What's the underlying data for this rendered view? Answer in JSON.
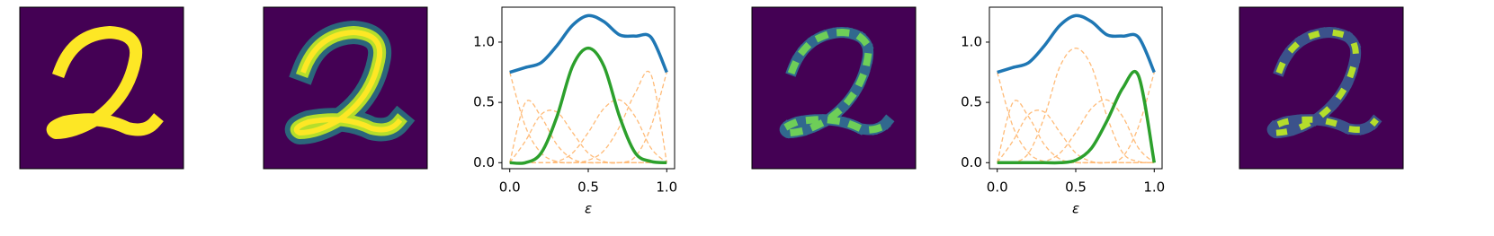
{
  "chart_data": [
    {
      "type": "line",
      "xlabel": "ε",
      "x": [
        0,
        0.1,
        0.2,
        0.3,
        0.4,
        0.5,
        0.6,
        0.7,
        0.8,
        0.9,
        1.0
      ],
      "xlim": [
        -0.05,
        1.05
      ],
      "ylim": [
        -0.05,
        1.29
      ],
      "xticks": [
        {
          "value": 0,
          "label": "0.0"
        },
        {
          "value": 0.5,
          "label": "0.5"
        },
        {
          "value": 1,
          "label": "1.0"
        }
      ],
      "yticks": [
        {
          "value": 0,
          "label": "0.0"
        },
        {
          "value": 0.5,
          "label": "0.5"
        },
        {
          "value": 1,
          "label": "1.0"
        }
      ],
      "series": [
        {
          "color": "#ffbb78",
          "linestyle": "dashed",
          "values": [
            0.75,
            0.3,
            0.08,
            0.01,
            0,
            0,
            0,
            0,
            0,
            0,
            0
          ]
        },
        {
          "color": "#ffbb78",
          "linestyle": "dashed",
          "values": [
            0,
            0.5,
            0.38,
            0.15,
            0.03,
            0,
            0,
            0,
            0,
            0,
            0
          ]
        },
        {
          "color": "#ffbb78",
          "linestyle": "dashed",
          "values": [
            0,
            0.18,
            0.4,
            0.42,
            0.25,
            0.08,
            0.01,
            0,
            0,
            0,
            0
          ]
        },
        {
          "color": "#ffbb78",
          "linestyle": "dashed",
          "values": [
            0,
            0,
            0,
            0.01,
            0.08,
            0.25,
            0.45,
            0.52,
            0.38,
            0.12,
            0
          ]
        },
        {
          "color": "#ffbb78",
          "linestyle": "dashed",
          "values": [
            0,
            0,
            0,
            0,
            0,
            0.02,
            0.1,
            0.3,
            0.58,
            0.73,
            0
          ]
        },
        {
          "color": "#ffbb78",
          "linestyle": "dashed",
          "values": [
            0,
            0,
            0,
            0,
            0,
            0,
            0,
            0,
            0.05,
            0.3,
            0.75
          ]
        },
        {
          "color": "#2ca02c",
          "linestyle": "solid",
          "values": [
            0,
            0,
            0.08,
            0.38,
            0.8,
            0.95,
            0.8,
            0.38,
            0.08,
            0.01,
            0
          ]
        },
        {
          "color": "#1f77b4",
          "linestyle": "solid",
          "values": [
            0.75,
            0.79,
            0.83,
            0.97,
            1.14,
            1.22,
            1.17,
            1.06,
            1.05,
            1.04,
            0.75
          ]
        }
      ]
    },
    {
      "type": "line",
      "xlabel": "ε",
      "x": [
        0,
        0.1,
        0.2,
        0.3,
        0.4,
        0.5,
        0.6,
        0.7,
        0.8,
        0.9,
        1.0
      ],
      "xlim": [
        -0.05,
        1.05
      ],
      "ylim": [
        -0.05,
        1.29
      ],
      "xticks": [
        {
          "value": 0,
          "label": "0.0"
        },
        {
          "value": 0.5,
          "label": "0.5"
        },
        {
          "value": 1,
          "label": "1.0"
        }
      ],
      "yticks": [
        {
          "value": 0,
          "label": "0.0"
        },
        {
          "value": 0.5,
          "label": "0.5"
        },
        {
          "value": 1,
          "label": "1.0"
        }
      ],
      "series": [
        {
          "color": "#ffbb78",
          "linestyle": "dashed",
          "values": [
            0.75,
            0.3,
            0.08,
            0.01,
            0,
            0,
            0,
            0,
            0,
            0,
            0
          ]
        },
        {
          "color": "#ffbb78",
          "linestyle": "dashed",
          "values": [
            0,
            0.5,
            0.38,
            0.15,
            0.03,
            0,
            0,
            0,
            0,
            0,
            0
          ]
        },
        {
          "color": "#ffbb78",
          "linestyle": "dashed",
          "values": [
            0,
            0.18,
            0.4,
            0.42,
            0.25,
            0.08,
            0.01,
            0,
            0,
            0,
            0
          ]
        },
        {
          "color": "#ffbb78",
          "linestyle": "dashed",
          "values": [
            0,
            0,
            0.08,
            0.38,
            0.8,
            0.95,
            0.8,
            0.38,
            0.08,
            0.01,
            0
          ]
        },
        {
          "color": "#ffbb78",
          "linestyle": "dashed",
          "values": [
            0,
            0,
            0,
            0.01,
            0.08,
            0.25,
            0.45,
            0.52,
            0.38,
            0.12,
            0
          ]
        },
        {
          "color": "#ffbb78",
          "linestyle": "dashed",
          "values": [
            0,
            0,
            0,
            0,
            0,
            0,
            0,
            0,
            0.05,
            0.3,
            0.75
          ]
        },
        {
          "color": "#2ca02c",
          "linestyle": "solid",
          "values": [
            0,
            0,
            0,
            0,
            0,
            0.02,
            0.12,
            0.35,
            0.62,
            0.72,
            0
          ]
        },
        {
          "color": "#1f77b4",
          "linestyle": "solid",
          "values": [
            0.75,
            0.79,
            0.83,
            0.97,
            1.14,
            1.22,
            1.17,
            1.06,
            1.05,
            1.04,
            0.75
          ]
        }
      ]
    }
  ]
}
